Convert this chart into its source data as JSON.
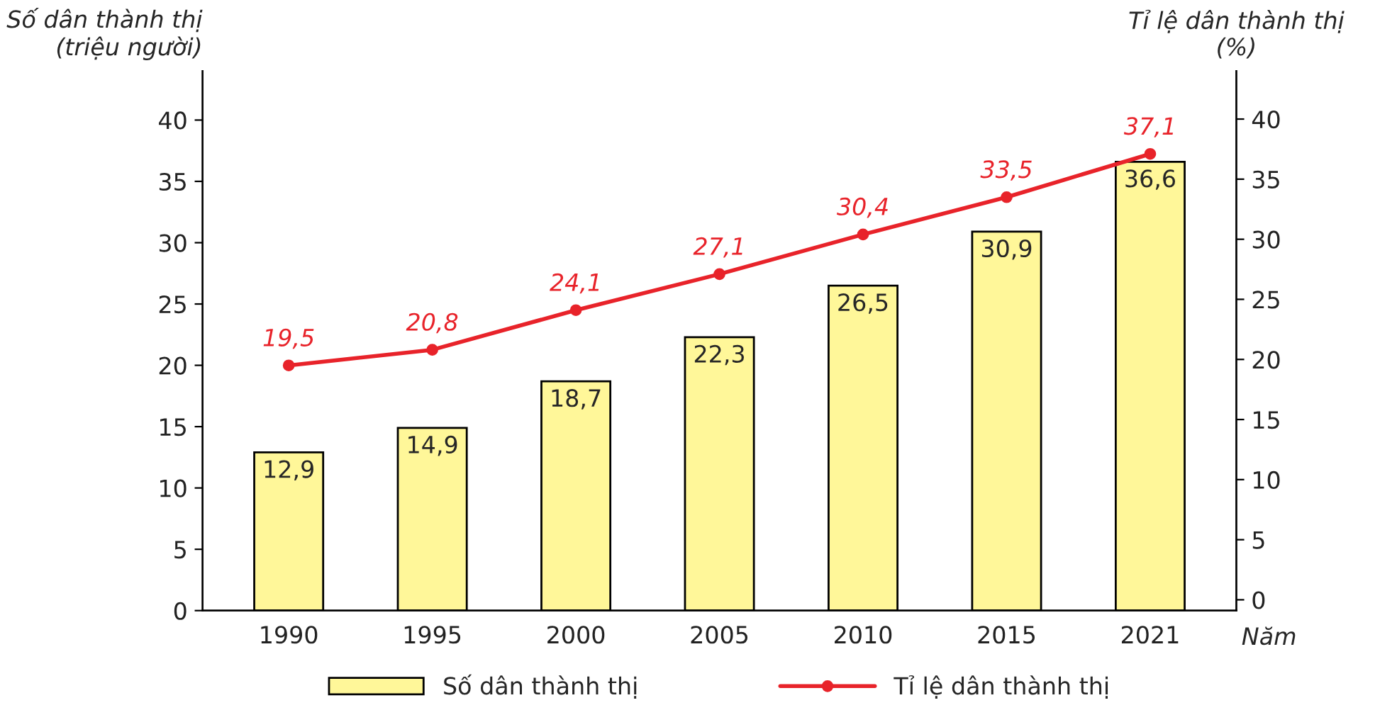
{
  "chart_data": {
    "type": "bar",
    "categories": [
      "1990",
      "1995",
      "2000",
      "2005",
      "2010",
      "2015",
      "2021"
    ],
    "xlabel": "Năm",
    "ylabel": "Số dân thành thị\n(triệu người)",
    "y2label": "Tỉ lệ dân thành thị\n(%)",
    "series": [
      {
        "name": "Số dân thành thị",
        "color": "#fff799",
        "values": [
          12.9,
          14.9,
          18.7,
          22.3,
          26.5,
          30.9,
          36.6
        ],
        "value_labels": [
          "12,9",
          "14,9",
          "18,7",
          "22,3",
          "26,5",
          "30,9",
          "36,6"
        ]
      },
      {
        "name": "Tỉ lệ dân thành thị",
        "type": "line",
        "axis": "y2",
        "color": "#e8232a",
        "marker": "circle",
        "values": [
          19.5,
          20.8,
          24.1,
          27.1,
          30.4,
          33.5,
          37.1
        ],
        "value_labels": [
          "19,5",
          "20,8",
          "24,1",
          "27,1",
          "30,4",
          "33,5",
          "37,1"
        ]
      }
    ],
    "ylim": [
      0,
      44
    ],
    "yticks": [
      0,
      5,
      10,
      15,
      20,
      25,
      30,
      35,
      40
    ],
    "y2lim": [
      -0.9,
      44
    ],
    "y2ticks": [
      0,
      5,
      10,
      15,
      20,
      25,
      30,
      35,
      40
    ],
    "grid": false,
    "legend": "bottom"
  }
}
